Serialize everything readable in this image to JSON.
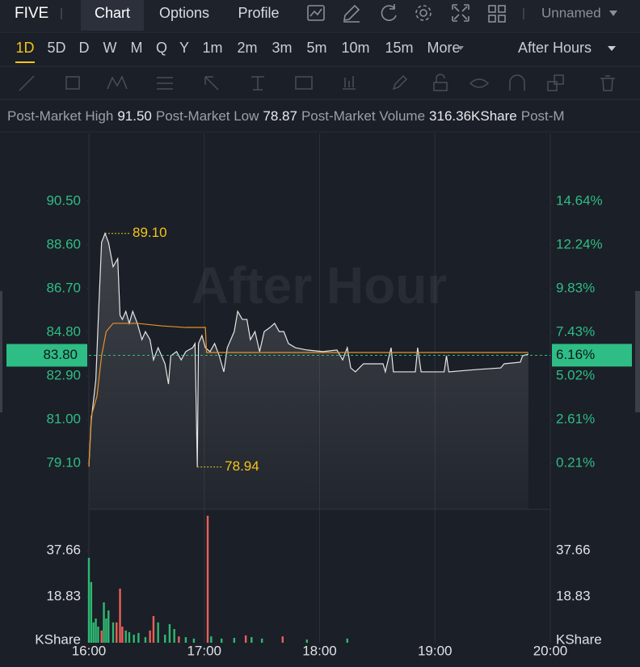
{
  "header": {
    "ticker": "FIVE",
    "tabs": [
      "Chart",
      "Options",
      "Profile"
    ],
    "layout_name": "Unnamed"
  },
  "periods": [
    "1D",
    "5D",
    "D",
    "W",
    "M",
    "Q",
    "Y",
    "1m",
    "2m",
    "3m",
    "5m",
    "10m",
    "15m",
    "More"
  ],
  "session": "After Hours",
  "stats": [
    {
      "label": "Post-Market High",
      "value": "91.50"
    },
    {
      "label": "Post-Market Low",
      "value": "78.87"
    },
    {
      "label": "Post-Market Volume",
      "value": "316.36KShare"
    },
    {
      "label": "Post-M"
    }
  ],
  "chart_data": [
    {
      "type": "line",
      "watermark": "After Hour",
      "xlim": [
        16,
        20
      ],
      "ylim": [
        77.1,
        93.45
      ],
      "y2lim": [
        -2.33,
        18.38
      ],
      "yticks": [
        {
          "value": 79.1,
          "label": "79.10"
        },
        {
          "value": 81,
          "label": "81.00"
        },
        {
          "value": 82.9,
          "label": "82.90"
        },
        {
          "value": 84.8,
          "label": "84.80"
        },
        {
          "value": 86.7,
          "label": "86.70"
        },
        {
          "value": 88.6,
          "label": "88.60"
        },
        {
          "value": 90.5,
          "label": "90.50"
        }
      ],
      "y2ticks": [
        {
          "value": 0.21,
          "label": "0.21%"
        },
        {
          "value": 2.61,
          "label": "2.61%"
        },
        {
          "value": 5.02,
          "label": "5.02%"
        },
        {
          "value": 7.43,
          "label": "7.43%"
        },
        {
          "value": 9.83,
          "label": "9.83%"
        },
        {
          "value": 12.24,
          "label": "12.24%"
        },
        {
          "value": 14.64,
          "label": "14.64%"
        }
      ],
      "tick_color": "#2ebd85",
      "series": [
        {
          "color": "#e6e6e6",
          "fill": true,
          "x": [
            16.0,
            16.02,
            16.06,
            16.08,
            16.11,
            16.14,
            16.17,
            16.21,
            16.25,
            16.27,
            16.29,
            16.32,
            16.35,
            16.38,
            16.42,
            16.46,
            16.49,
            16.53,
            16.56,
            16.6,
            16.63,
            16.66,
            16.69,
            16.71,
            16.76,
            16.8,
            16.84,
            16.9,
            16.92,
            16.94,
            16.95,
            16.98,
            17.01,
            17.05,
            17.09,
            17.13,
            17.17,
            17.2,
            17.26,
            17.29,
            17.33,
            17.37,
            17.4,
            17.44,
            17.48,
            17.52,
            17.57,
            17.61,
            17.65,
            17.69,
            17.73,
            17.79,
            17.89,
            18.03,
            18.15,
            18.2,
            18.24,
            18.27,
            18.31,
            18.38,
            18.55,
            18.57,
            18.62,
            18.64,
            18.83,
            18.85,
            18.88,
            19.08,
            19.1,
            19.12,
            19.36,
            19.57,
            19.6,
            19.74,
            19.76,
            19.81
          ],
          "values": [
            78.96,
            80.96,
            82.72,
            85.19,
            88.71,
            89.1,
            88.71,
            87.65,
            88.0,
            85.54,
            85.36,
            85.71,
            85.19,
            85.71,
            85.19,
            84.48,
            84.83,
            84.48,
            83.6,
            84.13,
            83.78,
            83.43,
            82.55,
            83.78,
            83.96,
            83.6,
            83.96,
            84.13,
            84.31,
            78.94,
            84.31,
            84.66,
            84.13,
            83.96,
            84.31,
            83.78,
            83.08,
            84.13,
            84.83,
            85.71,
            85.36,
            85.36,
            84.48,
            84.83,
            83.96,
            84.83,
            85.01,
            85.19,
            84.83,
            84.83,
            84.31,
            84.13,
            84.03,
            83.96,
            84.03,
            83.6,
            84.13,
            83.25,
            83.08,
            83.43,
            83.43,
            83.08,
            84.13,
            83.08,
            83.08,
            84.13,
            83.08,
            83.08,
            83.78,
            83.08,
            83.18,
            83.25,
            83.43,
            83.5,
            83.78,
            83.85
          ]
        },
        {
          "color": "#e8912c",
          "fill": false,
          "x": [
            16.0,
            16.02,
            16.07,
            16.11,
            16.15,
            16.21,
            16.42,
            16.63,
            16.84,
            17.01,
            17.02,
            18.03,
            19.81
          ],
          "values": [
            78.96,
            81.14,
            82.02,
            83.78,
            84.83,
            85.19,
            85.19,
            85.08,
            85.01,
            85.01,
            83.92,
            83.92,
            83.92
          ]
        }
      ],
      "annotations": [
        {
          "text": "89.10",
          "x": 16.14,
          "y": 89.1
        },
        {
          "text": "78.94",
          "x": 16.94,
          "y": 78.94
        }
      ],
      "annotation_color": "#f5c518",
      "last_price": {
        "value": 83.8,
        "label": "83.80"
      },
      "last_change": {
        "value": 6.16,
        "label": "6.16%"
      },
      "last_color": "#2ebd85"
    },
    {
      "type": "bar",
      "unit_label": "KShare",
      "xlim": [
        16,
        20
      ],
      "ylim": [
        0,
        54.5
      ],
      "xticks": [
        {
          "value": 16,
          "label": "16:00"
        },
        {
          "value": 17,
          "label": "17:00"
        },
        {
          "value": 18,
          "label": "18:00"
        },
        {
          "value": 19,
          "label": "19:00"
        },
        {
          "value": 20,
          "label": "20:00"
        }
      ],
      "yticks": [
        18.83,
        37.66
      ],
      "grid": true,
      "x": [
        16.0,
        16.02,
        16.04,
        16.06,
        16.08,
        16.11,
        16.13,
        16.15,
        16.17,
        16.21,
        16.24,
        16.27,
        16.29,
        16.32,
        16.35,
        16.39,
        16.43,
        16.49,
        16.53,
        16.56,
        16.6,
        16.66,
        16.7,
        16.74,
        16.78,
        16.84,
        16.91,
        17.03,
        17.06,
        17.15,
        17.26,
        17.36,
        17.41,
        17.5,
        17.68,
        17.89,
        18.24
      ],
      "values": [
        34.7,
        24.8,
        8.3,
        9.9,
        6.6,
        5.0,
        16.5,
        9.9,
        13.2,
        8.3,
        8.3,
        22.1,
        6.6,
        5.0,
        4.3,
        3.3,
        4.0,
        2.3,
        5.0,
        10.9,
        8.3,
        3.3,
        7.6,
        5.6,
        2.6,
        2.3,
        1.7,
        51.9,
        2.6,
        1.7,
        2.0,
        3.0,
        2.3,
        1.7,
        2.6,
        1.3,
        1.7
      ],
      "colors": [
        "#2eb872",
        "#2eb872",
        "#2eb872",
        "#2eb872",
        "#2eb872",
        "#e8605a",
        "#2eb872",
        "#2eb872",
        "#2eb872",
        "#2eb872",
        "#e8605a",
        "#e8605a",
        "#e8605a",
        "#2eb872",
        "#2eb872",
        "#2eb872",
        "#2eb872",
        "#2eb872",
        "#e8605a",
        "#e8605a",
        "#2eb872",
        "#2eb872",
        "#2eb872",
        "#2eb872",
        "#e8605a",
        "#2eb872",
        "#2eb872",
        "#e8605a",
        "#2eb872",
        "#2eb872",
        "#2eb872",
        "#e8605a",
        "#2eb872",
        "#2eb872",
        "#e8605a",
        "#2eb872",
        "#2eb872"
      ]
    }
  ]
}
